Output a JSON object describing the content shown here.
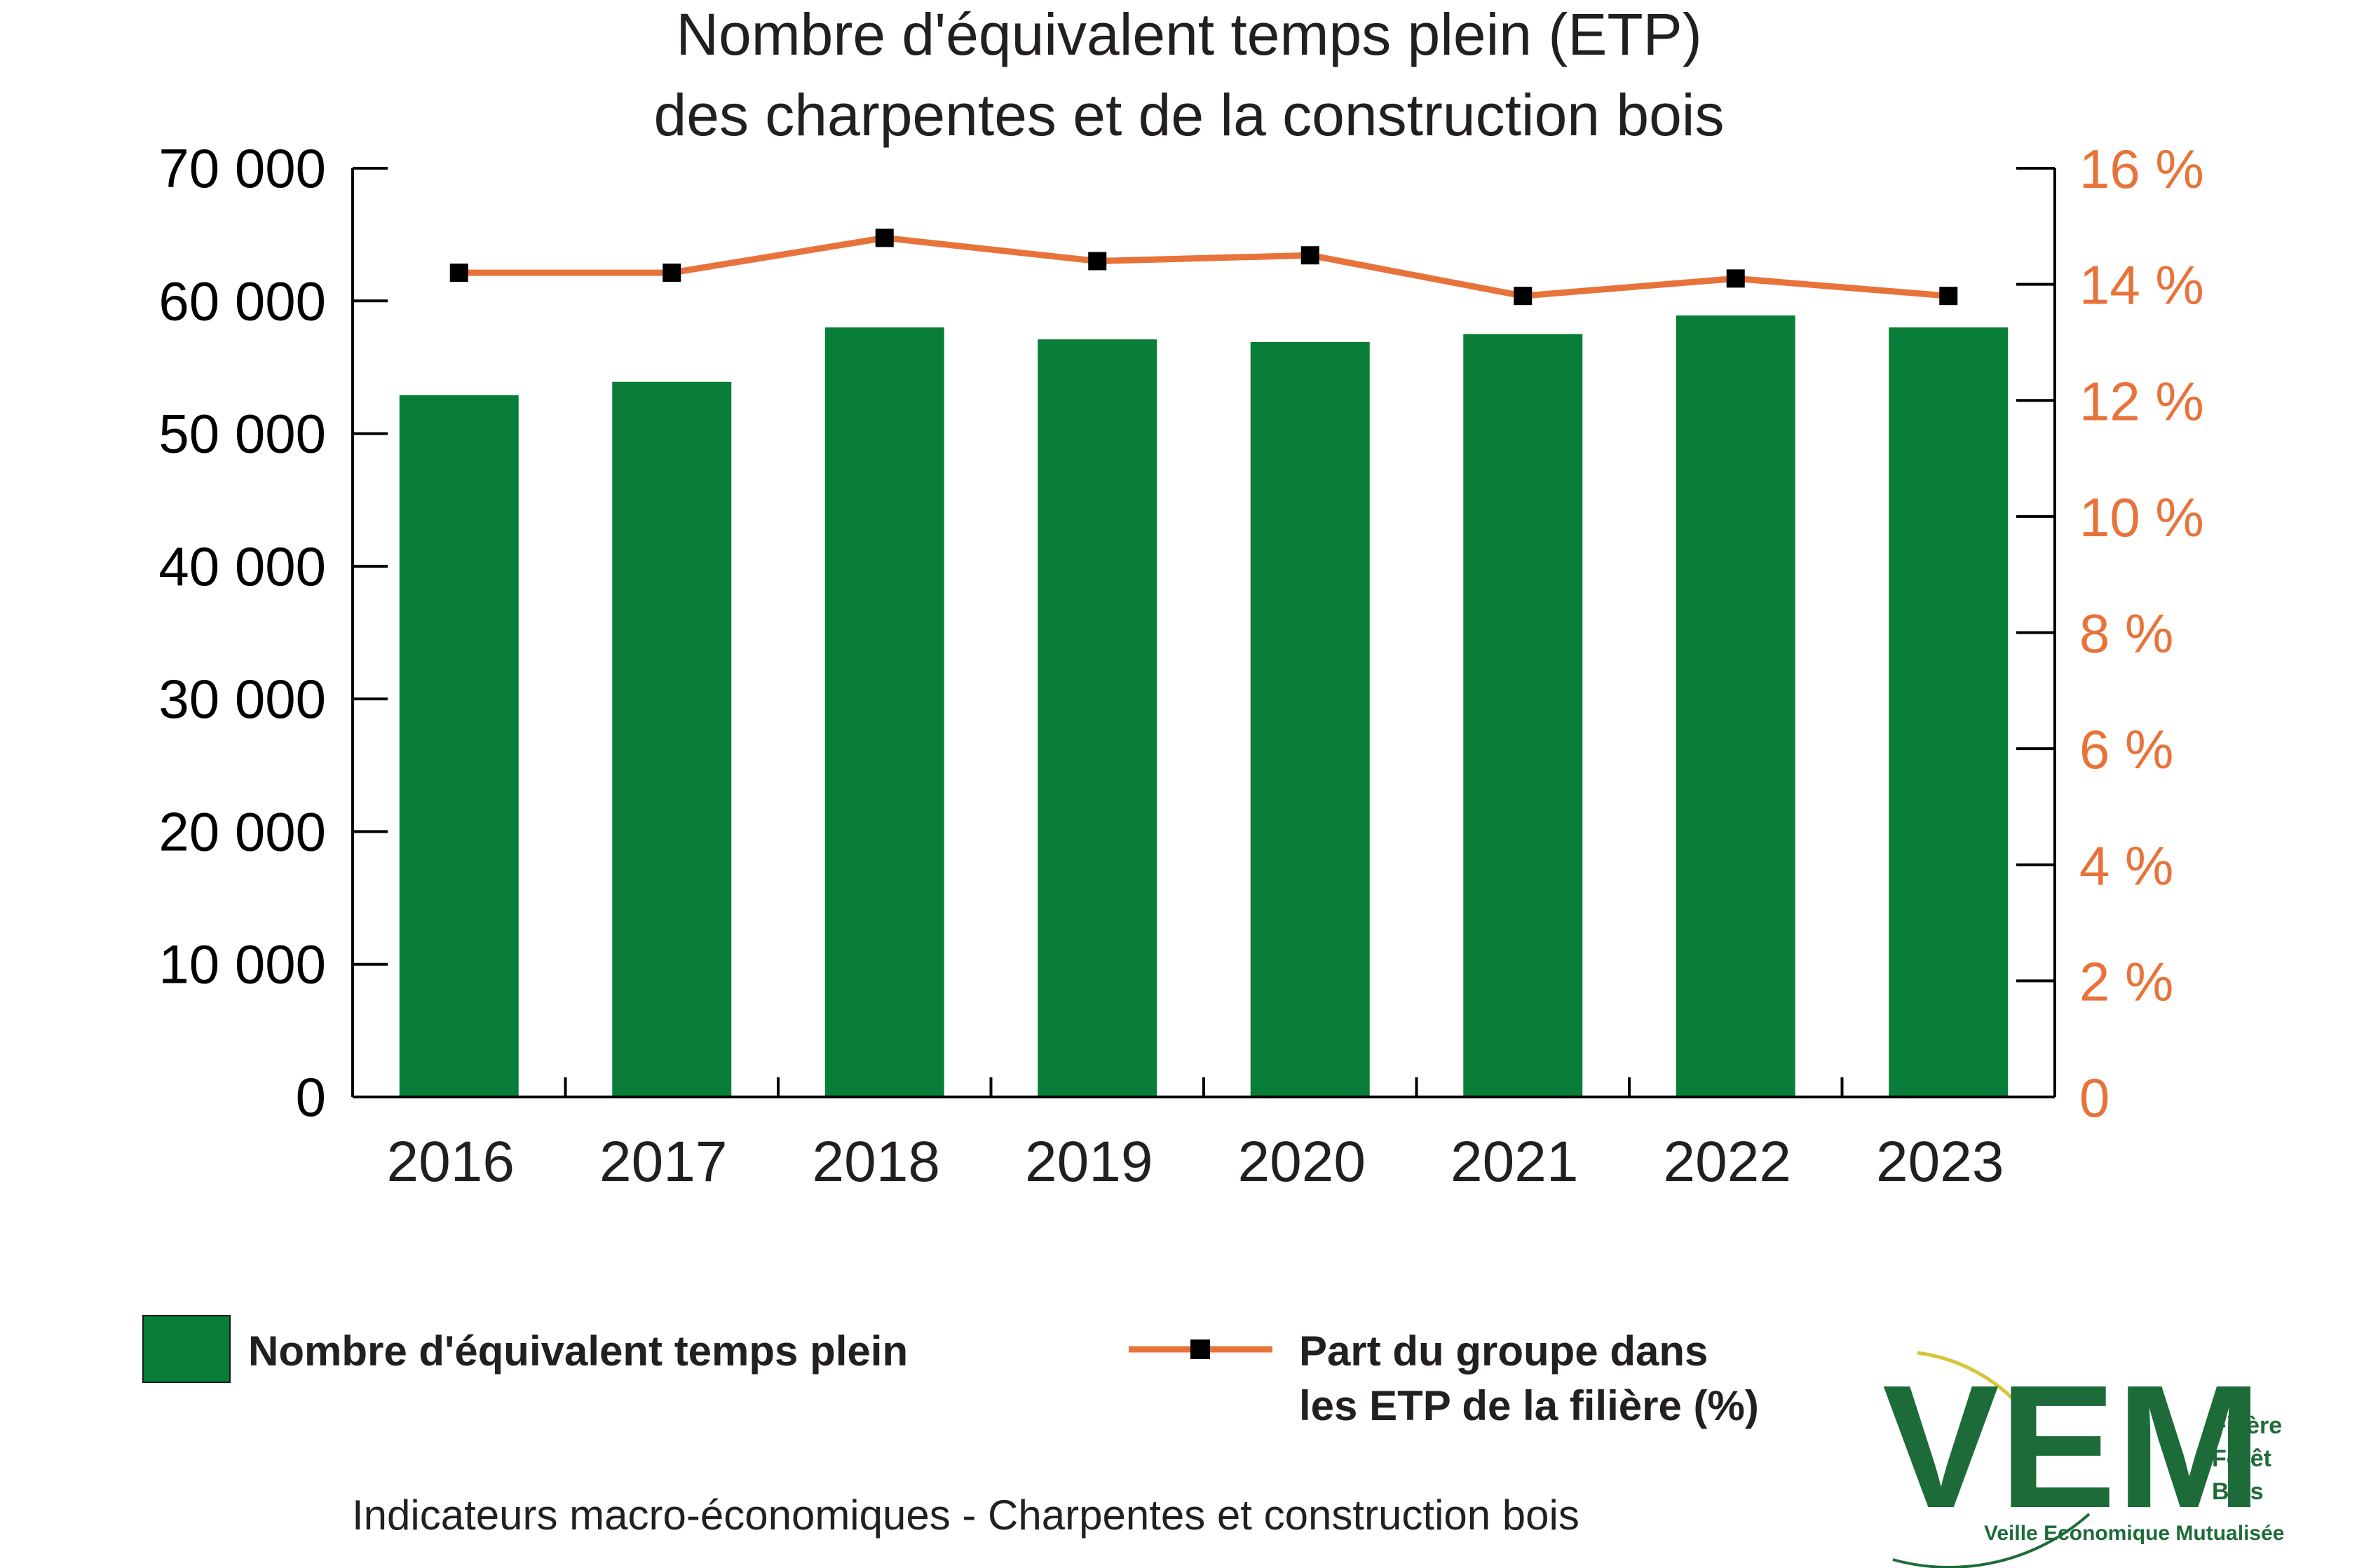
{
  "chart_data": {
    "type": "bar",
    "title_lines": [
      "Nombre d'équivalent temps plein (ETP)",
      "des charpentes et de la construction bois"
    ],
    "categories": [
      "2016",
      "2017",
      "2018",
      "2019",
      "2020",
      "2021",
      "2022",
      "2023"
    ],
    "y_left": {
      "ylim": [
        0,
        70000
      ],
      "ticks": [
        0,
        10000,
        20000,
        30000,
        40000,
        50000,
        60000,
        70000
      ],
      "tick_labels": [
        "0",
        "10 000",
        "20 000",
        "30 000",
        "40 000",
        "50 000",
        "60 000",
        "70 000"
      ]
    },
    "y_right": {
      "ylim": [
        0,
        16
      ],
      "ticks": [
        0,
        2,
        4,
        6,
        8,
        10,
        12,
        14,
        16
      ],
      "tick_labels": [
        "0",
        "2 %",
        "4 %",
        "6 %",
        "8 %",
        "10 %",
        "12 %",
        "14 %",
        "16 %"
      ]
    },
    "series": [
      {
        "name": "Nombre d'équivalent temps plein",
        "type": "bar",
        "axis": "left",
        "color": "#087e39",
        "values": [
          52900,
          53900,
          58000,
          57100,
          56900,
          57500,
          58900,
          58000
        ]
      },
      {
        "name_lines": [
          "Part du groupe dans",
          "les ETP de la filière  (%)"
        ],
        "type": "line",
        "axis": "right",
        "color": "#e8733a",
        "marker_color": "#000000",
        "values": [
          14.2,
          14.2,
          14.8,
          14.4,
          14.5,
          13.8,
          14.1,
          13.8
        ]
      }
    ],
    "grid": false,
    "legend_position": "bottom"
  },
  "footer": "Indicateurs macro-économiques - Charpentes et construction bois",
  "logo": {
    "letters": "VEM",
    "line1": "Filière",
    "line2": "Forêt",
    "line3": "Bois",
    "subtitle": "Veille Economique Mutualisée"
  },
  "colors": {
    "bar": "#087e39",
    "line": "#e8733a",
    "right_axis_text": "#e8733a",
    "logo": "#1e6b3a"
  }
}
